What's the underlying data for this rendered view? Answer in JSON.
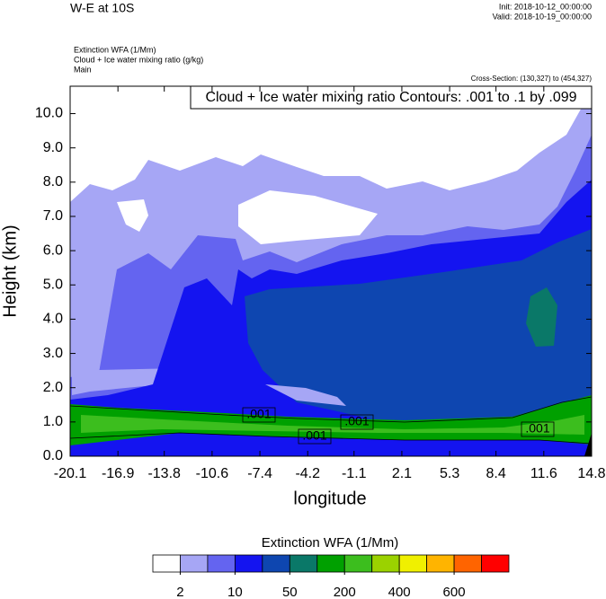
{
  "chart_data": {
    "type": "contour",
    "title": "W-E at 10S",
    "init": "Init: 2018-10-12_00:00:00",
    "valid": "Valid: 2018-10-19_00:00:00",
    "field_lines": [
      "Extinction WFA   (1/Mm)",
      "Cloud + Ice water mixing ratio   (g/kg)",
      "Main"
    ],
    "cross_section": "Cross-Section: (130,327) to (454,327)",
    "contour_info": "Cloud + Ice water mixing ratio Contours: .001 to .1 by .099",
    "contour_labels": [
      ".001",
      ".001",
      ".001",
      ".001"
    ],
    "x_label": "longitude",
    "y_label": "Height (km)",
    "xlim": [
      -20.1,
      14.8
    ],
    "xticks": [
      -20.1,
      -16.9,
      -13.8,
      -10.6,
      -7.4,
      -4.2,
      -1.1,
      2.1,
      5.3,
      8.4,
      11.6,
      14.8
    ],
    "ylim": [
      0,
      10.8
    ],
    "yticks": [
      {
        "value": 0,
        "label": "0.0"
      },
      {
        "value": 1,
        "label": "1.0"
      },
      {
        "value": 2,
        "label": "2.0"
      },
      {
        "value": 3,
        "label": "3.0"
      },
      {
        "value": 4,
        "label": "4.0"
      },
      {
        "value": 5,
        "label": "5.0"
      },
      {
        "value": 6,
        "label": "6.0"
      },
      {
        "value": 7,
        "label": "7.0"
      },
      {
        "value": 8,
        "label": "8.0"
      },
      {
        "value": 9,
        "label": "9.0"
      },
      {
        "value": 10,
        "label": "10.0"
      }
    ],
    "colorbar": {
      "title": "Extinction WFA  (1/Mm)",
      "levels": [
        2,
        10,
        50,
        200,
        400,
        600
      ],
      "colors": [
        "#ffffff",
        "#a6a6f5",
        "#6464f0",
        "#1414f0",
        "#0e46b0",
        "#0a7868",
        "#00a000",
        "#3cbe1e",
        "#9bd200",
        "#f0f000",
        "#ffb400",
        "#ff6400",
        "#ff0000"
      ]
    }
  }
}
